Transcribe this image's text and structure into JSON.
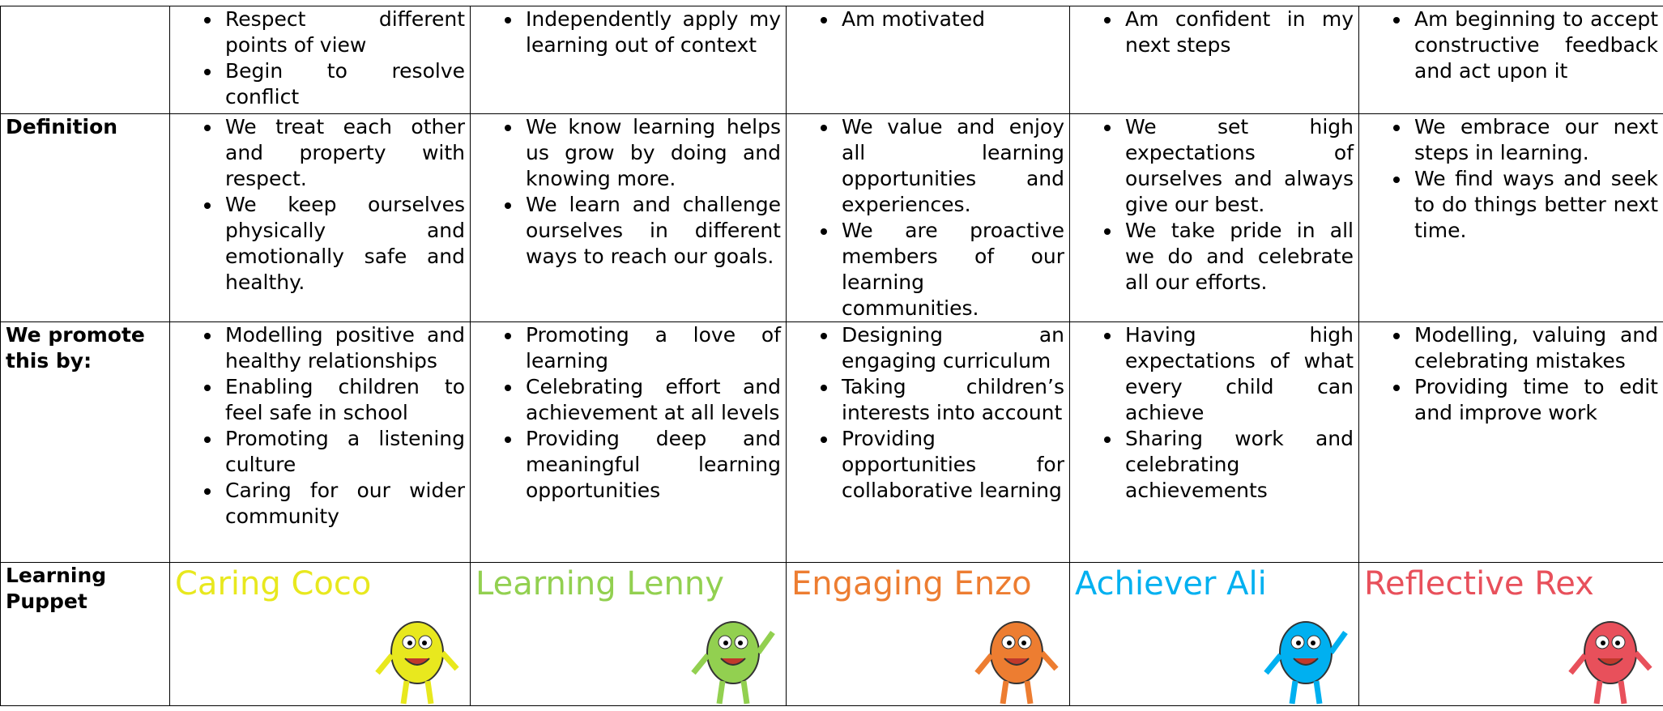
{
  "table": {
    "rows": [
      {
        "cells": [
          [
            "Respect different points of view",
            "Begin to resolve conflict"
          ],
          [
            "Independently apply my learning out of context"
          ],
          [
            "Am motivated"
          ],
          [
            "Am confident in my next steps"
          ],
          [
            "Am beginning to accept constructive feedback and act upon it"
          ]
        ]
      },
      {
        "header": "Definition",
        "cells": [
          [
            "We treat each other and property with respect.",
            "We keep ourselves physically and emotionally safe and healthy."
          ],
          [
            "We know learning helps us grow by doing and knowing more.",
            "We learn and challenge ourselves in different ways to reach our goals."
          ],
          [
            "We value and enjoy all learning opportunities and experiences.",
            "We are proactive members of our learning communities."
          ],
          [
            "We set high expectations of ourselves and always give our best.",
            "We take pride in all we do and celebrate all our efforts."
          ],
          [
            "We embrace our next steps in learning.",
            "We find ways and seek to do things better next time."
          ]
        ]
      },
      {
        "header": "We promote this by:",
        "cells": [
          [
            "Modelling positive and healthy relationships",
            "Enabling children to feel safe in school",
            "Promoting a listening culture",
            "Caring for our wider community"
          ],
          [
            "Promoting a love of learning",
            "Celebrating effort and achievement at all levels",
            "Providing deep and meaningful learning opportunities"
          ],
          [
            "Designing an engaging curriculum",
            "Taking children’s interests into account",
            "Providing opportunities for collaborative learning"
          ],
          [
            "Having high expectations of what every child can achieve",
            "Sharing work and celebrating achievements"
          ],
          [
            "Modelling, valuing and celebrating mistakes",
            "Providing time to edit and improve work"
          ]
        ]
      },
      {
        "header": "Learning Puppet",
        "puppets": [
          "Caring Coco",
          "Learning Lenny",
          "Engaging Enzo",
          "Achiever Ali",
          "Reflective Rex"
        ]
      }
    ]
  }
}
